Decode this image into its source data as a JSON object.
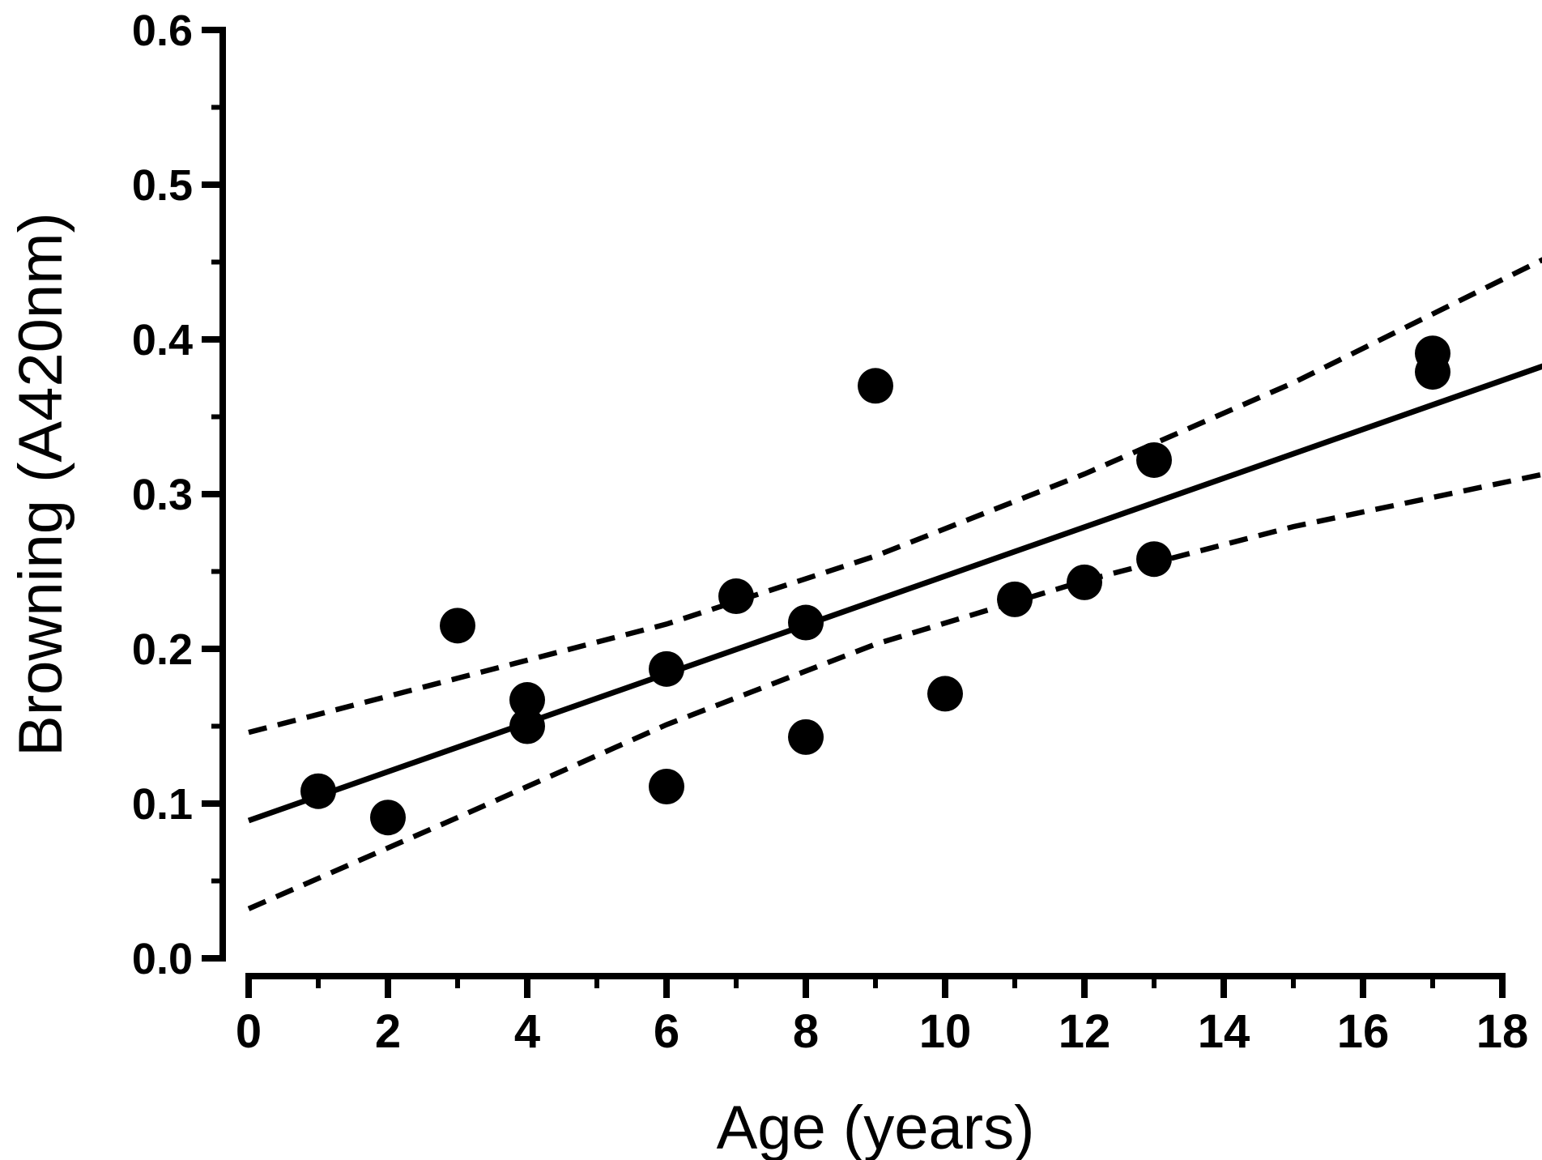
{
  "chart_data": {
    "type": "scatter",
    "title": "",
    "xlabel": "Age (years)",
    "ylabel": "Browning (A420nm)",
    "xlim": [
      0,
      18
    ],
    "ylim": [
      0.0,
      0.6
    ],
    "x_major_ticks": [
      0,
      2,
      4,
      6,
      8,
      10,
      12,
      14,
      16,
      18
    ],
    "x_minor_ticks": [
      1,
      3,
      5,
      7,
      9,
      11,
      13,
      15,
      17
    ],
    "y_major_ticks": [
      0.0,
      0.1,
      0.2,
      0.3,
      0.4,
      0.5,
      0.6
    ],
    "y_minor_ticks": [
      0.05,
      0.15,
      0.25,
      0.35,
      0.45,
      0.55
    ],
    "y_tick_decimals": 1,
    "grid": "off",
    "legend": "none",
    "points": [
      [
        1,
        0.108
      ],
      [
        2,
        0.091
      ],
      [
        3,
        0.215
      ],
      [
        4,
        0.167
      ],
      [
        4,
        0.15
      ],
      [
        6,
        0.187
      ],
      [
        6,
        0.111
      ],
      [
        7,
        0.234
      ],
      [
        8,
        0.217
      ],
      [
        8,
        0.143
      ],
      [
        9,
        0.37
      ],
      [
        10,
        0.171
      ],
      [
        11,
        0.232
      ],
      [
        12,
        0.243
      ],
      [
        13,
        0.322
      ],
      [
        13,
        0.258
      ],
      [
        17,
        0.391
      ],
      [
        17,
        0.379
      ]
    ],
    "regression_line": {
      "style": "solid",
      "points": [
        [
          0,
          0.089
        ],
        [
          18.6,
          0.383
        ]
      ]
    },
    "ci_upper_line": {
      "style": "dashed",
      "points": [
        [
          0,
          0.146
        ],
        [
          3,
          0.181
        ],
        [
          6,
          0.216
        ],
        [
          9,
          0.26
        ],
        [
          12,
          0.313
        ],
        [
          15,
          0.372
        ],
        [
          18.6,
          0.452
        ]
      ]
    },
    "ci_lower_line": {
      "style": "dashed",
      "points": [
        [
          0,
          0.032
        ],
        [
          3,
          0.091
        ],
        [
          6,
          0.151
        ],
        [
          9,
          0.203
        ],
        [
          12,
          0.244
        ],
        [
          15,
          0.279
        ],
        [
          18.6,
          0.313
        ]
      ]
    },
    "styles": {
      "marker_color": "#000000",
      "line_color": "#000000",
      "axis_color": "#000000",
      "background": "#ffffff",
      "marker_radius_px": 22
    }
  }
}
